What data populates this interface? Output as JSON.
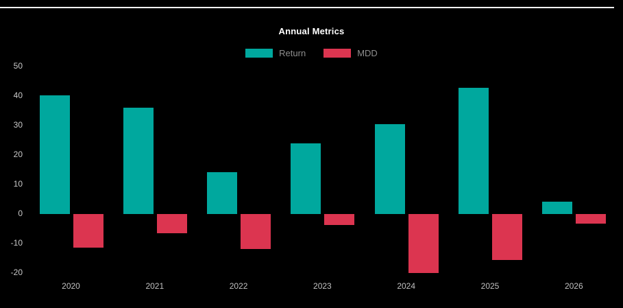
{
  "title": "Annual Metrics",
  "legend": [
    {
      "label": "Return",
      "color": "#00a89e"
    },
    {
      "label": "MDD",
      "color": "#dc3550"
    }
  ],
  "colors": {
    "background": "#000000",
    "return_bar": "#00a89e",
    "mdd_bar": "#dc3550",
    "title_text": "#ffffff",
    "axis_text": "#c9c9c9",
    "legend_text": "#8f8f8f",
    "top_divider": "#ffffff"
  },
  "chart_data": {
    "type": "bar",
    "title": "Annual Metrics",
    "categories": [
      "2020",
      "2021",
      "2022",
      "2023",
      "2024",
      "2025",
      "2026"
    ],
    "series": [
      {
        "name": "Return",
        "color": "#00a89e",
        "values": [
          40.2,
          36.0,
          14.2,
          24.0,
          30.4,
          42.8,
          4.3
        ]
      },
      {
        "name": "MDD",
        "color": "#dc3550",
        "values": [
          -11.3,
          -6.6,
          -11.9,
          -3.8,
          -20.0,
          -15.5,
          -3.3
        ]
      }
    ],
    "xlabel": "",
    "ylabel": "",
    "yticks": [
      50,
      40,
      30,
      20,
      10,
      0,
      -10,
      -20
    ],
    "ylim": [
      -25,
      55
    ],
    "grid": false,
    "legend_position": "top-center",
    "background": "dark"
  }
}
